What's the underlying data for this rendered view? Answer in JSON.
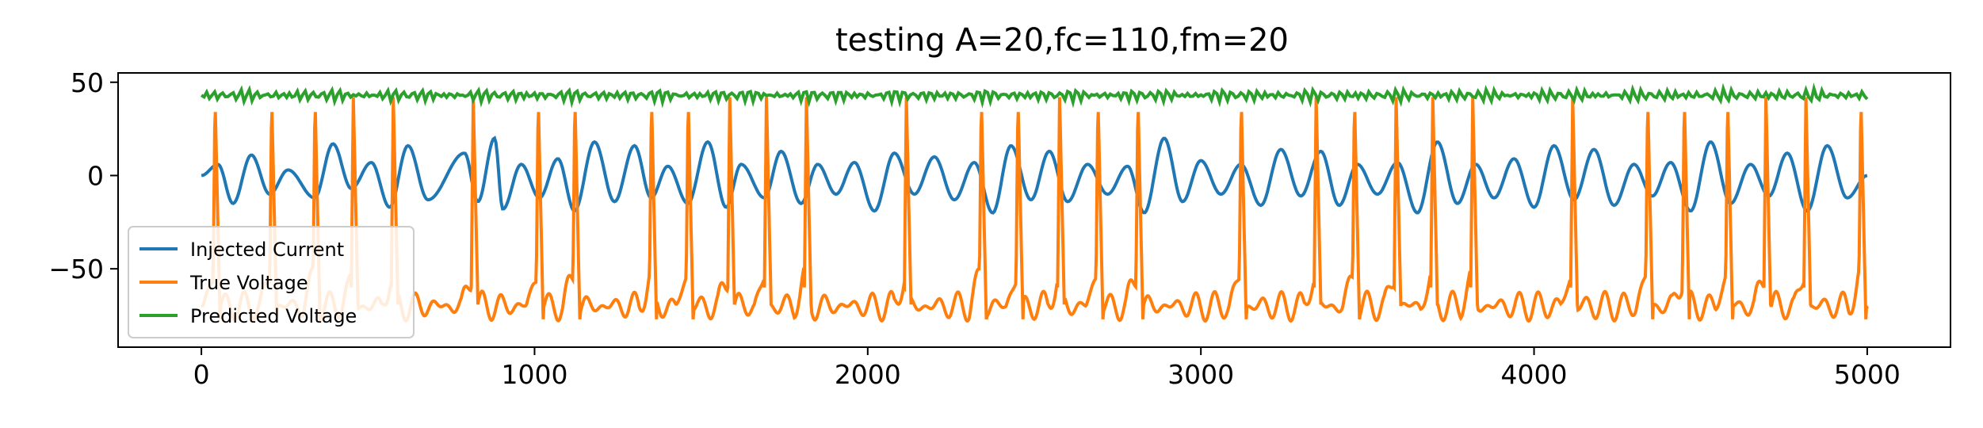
{
  "chart_data": {
    "type": "line",
    "title": "testing A=20,fc=110,fm=20",
    "xlabel": "",
    "ylabel": "",
    "xlim": [
      -250,
      5250
    ],
    "ylim": [
      -92,
      55
    ],
    "xticks": [
      0,
      1000,
      2000,
      3000,
      4000,
      5000
    ],
    "xtick_labels": [
      "0",
      "1000",
      "2000",
      "3000",
      "4000",
      "5000"
    ],
    "yticks": [
      50,
      0,
      -50
    ],
    "ytick_labels": [
      "50",
      "0",
      "−50"
    ],
    "grid": false,
    "legend_position": "lower-left",
    "series": [
      {
        "name": "Injected Current",
        "color": "#1f77b4",
        "description_free": true,
        "x_range": [
          0,
          5000
        ],
        "x": [
          0,
          50,
          95,
          150,
          205,
          260,
          340,
          395,
          450,
          510,
          565,
          620,
          680,
          790,
          830,
          880,
          905,
          960,
          1015,
          1070,
          1120,
          1180,
          1240,
          1300,
          1350,
          1400,
          1460,
          1520,
          1575,
          1620,
          1690,
          1740,
          1800,
          1850,
          1905,
          1960,
          2020,
          2080,
          2140,
          2200,
          2260,
          2320,
          2375,
          2430,
          2490,
          2545,
          2600,
          2660,
          2720,
          2780,
          2830,
          2890,
          2945,
          3000,
          3060,
          3120,
          3180,
          3240,
          3300,
          3360,
          3415,
          3470,
          3530,
          3590,
          3650,
          3710,
          3770,
          3825,
          3880,
          3940,
          4000,
          4060,
          4120,
          4180,
          4240,
          4300,
          4355,
          4410,
          4470,
          4530,
          4590,
          4650,
          4705,
          4760,
          4820,
          4880,
          4940,
          5000
        ],
        "y": [
          0,
          6,
          -15,
          11,
          -10,
          3,
          -12,
          17,
          -7,
          7,
          -17,
          16,
          -13,
          12,
          -14,
          20,
          -18,
          6,
          -12,
          9,
          -19,
          18,
          -14,
          16,
          -12,
          5,
          -15,
          18,
          -17,
          6,
          -12,
          13,
          -15,
          6,
          -10,
          7,
          -19,
          12,
          -10,
          10,
          -13,
          7,
          -20,
          16,
          -13,
          13,
          -14,
          6,
          -10,
          5,
          -20,
          20,
          -14,
          8,
          -10,
          6,
          -16,
          14,
          -11,
          13,
          -16,
          6,
          -10,
          7,
          -20,
          18,
          -15,
          6,
          -12,
          9,
          -17,
          16,
          -13,
          14,
          -16,
          6,
          -11,
          7,
          -19,
          18,
          -15,
          6,
          -11,
          12,
          -19,
          16,
          -12,
          0
        ]
      },
      {
        "name": "True Voltage",
        "color": "#ff7f0e",
        "spike_times": [
          35,
          205,
          335,
          450,
          570,
          810,
          1005,
          1115,
          1345,
          1455,
          1580,
          1690,
          1810,
          2110,
          2335,
          2445,
          2570,
          2685,
          2805,
          3115,
          3340,
          3455,
          3580,
          3690,
          3810,
          4110,
          4335,
          4445,
          4575,
          4690,
          4810,
          4975
        ],
        "spike_peak": 42,
        "resting_range": [
          -85,
          -57
        ]
      },
      {
        "name": "Predicted Voltage",
        "color": "#2ca02c",
        "mean": 43,
        "range": [
          38,
          47
        ]
      }
    ]
  }
}
